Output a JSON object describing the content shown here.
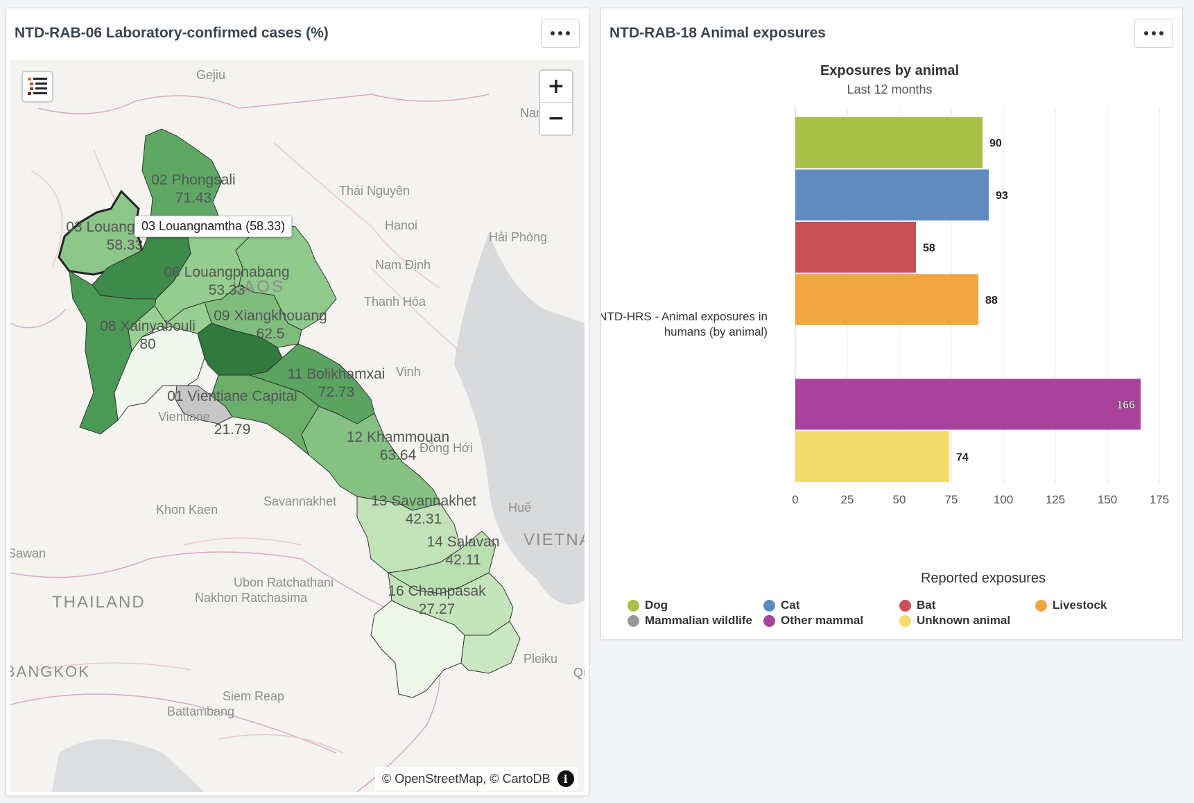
{
  "map_panel": {
    "title": "NTD-RAB-06 Laboratory-confirmed cases (%)",
    "menu_label": "More options",
    "tooltip": "03 Louangnamtha (58.33)",
    "attribution": "© OpenStreetMap, © CartoDB",
    "zoom_in": "+",
    "zoom_out": "−",
    "info": "i",
    "regions": [
      {
        "name": "02 Phongsali",
        "value": "71.43",
        "color": "#5ea864"
      },
      {
        "name": "03 Louangnamtha",
        "value": "58.33",
        "color": "#8cc688"
      },
      {
        "name": "06 Louangphabang",
        "value": "53.33",
        "color": "#95cc8f"
      },
      {
        "name": "08 Xainyabouli",
        "value": "80",
        "color": "#4a9a55"
      },
      {
        "name": "09 Xiangkhouang",
        "value": "62.5",
        "color": "#7fbd7d"
      },
      {
        "name": "01 Vientiane Capital",
        "value": "21.79",
        "color": "#c6c6c6"
      },
      {
        "name": "11 Bolikhamxai",
        "value": "72.73",
        "color": "#5aa462"
      },
      {
        "name": "12 Khammouan",
        "value": "63.64",
        "color": "#84c182"
      },
      {
        "name": "13 Savannakhet",
        "value": "42.31",
        "color": "#c2e3b8"
      },
      {
        "name": "14 Salavan",
        "value": "42.11",
        "color": "#c4e4ba"
      },
      {
        "name": "16 Champasak",
        "value": "27.27",
        "color": "#eef6ea"
      }
    ],
    "basemap_labels": [
      "Gejiu",
      "Thái Nguyên",
      "Hanoi",
      "Hải Phòng",
      "Nam Định",
      "Thanh Hóa",
      "Vinh",
      "Đồng Hới",
      "Huế",
      "Khon Kaen",
      "Savannakhet",
      "Sawan",
      "Ubon Ratchathani",
      "Nakhon Ratchasima",
      "THAILAND",
      "BANGKOK",
      "Pleiku",
      "Siem Reap",
      "Battambang",
      "VIETNAM",
      "Nanning",
      "Vientiane",
      "LAOS",
      "Qui"
    ]
  },
  "chart_panel": {
    "title": "NTD-RAB-18 Animal exposures",
    "menu_label": "More options",
    "legend": [
      {
        "name": "Dog",
        "color": "#a9bf45"
      },
      {
        "name": "Cat",
        "color": "#5f8bc0"
      },
      {
        "name": "Bat",
        "color": "#c85158"
      },
      {
        "name": "Livestock",
        "color": "#f1a541"
      },
      {
        "name": "Mammalian wildlife",
        "color": "#9c9799"
      },
      {
        "name": "Other mammal",
        "color": "#a8439c"
      },
      {
        "name": "Unknown animal",
        "color": "#f6db6d"
      }
    ]
  },
  "chart_data": {
    "type": "bar",
    "orientation": "horizontal",
    "title": "Exposures by animal",
    "subtitle": "Last 12 months",
    "categories": [
      "NTD-HRS - Animal exposures in humans (by animal)"
    ],
    "series": [
      {
        "name": "Dog",
        "values": [
          90
        ],
        "color": "#a9bf45"
      },
      {
        "name": "Cat",
        "values": [
          93
        ],
        "color": "#5f8bc0"
      },
      {
        "name": "Bat",
        "values": [
          58
        ],
        "color": "#c85158"
      },
      {
        "name": "Livestock",
        "values": [
          88
        ],
        "color": "#f1a541"
      },
      {
        "name": "Mammalian wildlife",
        "values": [
          null
        ],
        "color": "#9c9799"
      },
      {
        "name": "Other mammal",
        "values": [
          166
        ],
        "color": "#a8439c"
      },
      {
        "name": "Unknown animal",
        "values": [
          74
        ],
        "color": "#f6db6d"
      }
    ],
    "xlabel": "Reported exposures",
    "ylabel": "",
    "xlim": [
      0,
      175
    ],
    "xticks": [
      0,
      25,
      50,
      75,
      100,
      125,
      150,
      175
    ],
    "category_label_lines": [
      "NTD-HRS - Animal exposures in",
      "humans (by animal)"
    ],
    "grid": true,
    "legend_position": "bottom"
  }
}
